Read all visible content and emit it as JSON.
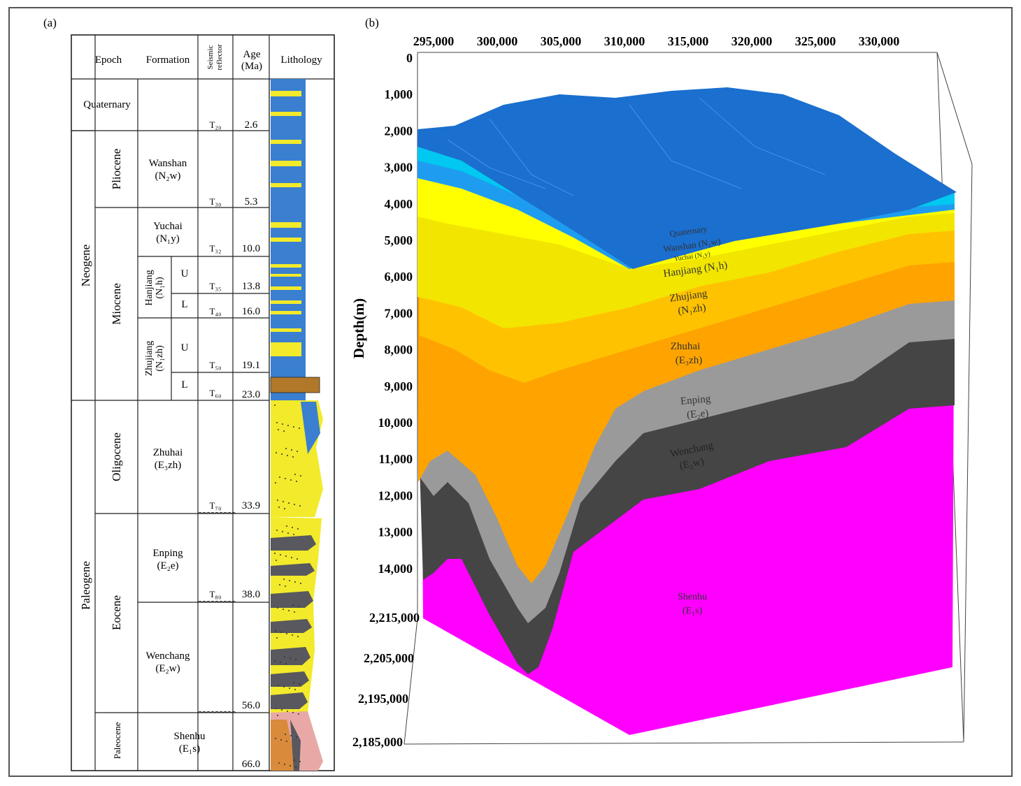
{
  "panel_a": {
    "label": "(a)",
    "headers": {
      "epoch": "Epoch",
      "formation": "Formation",
      "seismic_reflector": "Seismic reflector",
      "age": "Age (Ma)",
      "lithology": "Lithology"
    },
    "periods": [
      "Neogene",
      "Paleogene"
    ],
    "epochs": [
      "Quaternary",
      "Pliocene",
      "Miocene",
      "Oligocene",
      "Eocene",
      "Paleocene"
    ],
    "formations": [
      {
        "name": "Wanshan",
        "sub": "(N₂w)"
      },
      {
        "name": "Yuchai",
        "sub": "(N₁y)"
      },
      {
        "name": "Hanjiang",
        "sub": "(N₁h)"
      },
      {
        "name": "Zhujiang",
        "sub": "(N₁zh)"
      },
      {
        "name": "Zhuhai",
        "sub": "(E₃zh)"
      },
      {
        "name": "Enping",
        "sub": "(E₂e)"
      },
      {
        "name": "Wenchang",
        "sub": "(E₂w)"
      },
      {
        "name": "Shenhu",
        "sub": "(E₁s)"
      }
    ],
    "subunits": [
      "U",
      "L",
      "U",
      "L"
    ],
    "reflectors": [
      "T₂₀",
      "T₃₀",
      "T₃₂",
      "T₃₅",
      "T₄₀",
      "T₅₀",
      "T₆₀",
      "T₇₀",
      "T₈₀"
    ],
    "ages": [
      "2.6",
      "5.3",
      "10.0",
      "13.8",
      "16.0",
      "19.1",
      "23.0",
      "33.9",
      "38.0",
      "56.0",
      "66.0"
    ],
    "colors": {
      "blue": "#3a7fd0",
      "yellow": "#f2ea2a",
      "grey": "#58585e",
      "pink": "#e8a9a6",
      "orange": "#d98a3a",
      "brown": "#b07828"
    }
  },
  "panel_b": {
    "label": "(b)",
    "x_ticks": [
      "295,000",
      "300,000",
      "305,000",
      "310,000",
      "315,000",
      "320,000",
      "325,000",
      "330,000"
    ],
    "depth_ticks": [
      "0",
      "1,000",
      "2,000",
      "3,000",
      "4,000",
      "5,000",
      "6,000",
      "7,000",
      "8,000",
      "9,000",
      "10,000",
      "11,000",
      "12,000",
      "13,000",
      "14,000"
    ],
    "y_ticks": [
      "2,215,000",
      "2,205,000",
      "2,195,000",
      "2,185,000"
    ],
    "depth_axis_label": "Depth(m)",
    "layer_labels": [
      {
        "text": "Quaternary"
      },
      {
        "text": "Wanshan (N₂w)"
      },
      {
        "text": "Yuchai (N₁y)"
      },
      {
        "text": "Hanjiang (N₁h)"
      },
      {
        "text": "Zhujiang"
      },
      {
        "text": "(N₁zh)"
      },
      {
        "text": "Zhuhai"
      },
      {
        "text": "(E₃zh)"
      },
      {
        "text": "Enping"
      },
      {
        "text": "(E₂e)"
      },
      {
        "text": "Wenchang"
      },
      {
        "text": "(E₂w)"
      },
      {
        "text": "Shenhu"
      },
      {
        "text": "(E₁s)"
      }
    ],
    "colors": {
      "top_surface": "#1a6fcf",
      "quaternary": "#00c8f0",
      "wanshan": "#1e9cf0",
      "yuchai": "#ffff00",
      "hanjiang": "#f2e600",
      "zhujiang": "#ffc200",
      "zhuhai": "#ffa300",
      "enping": "#9a9a9a",
      "wenchang": "#454545",
      "shenhu": "#ff00ff"
    }
  }
}
